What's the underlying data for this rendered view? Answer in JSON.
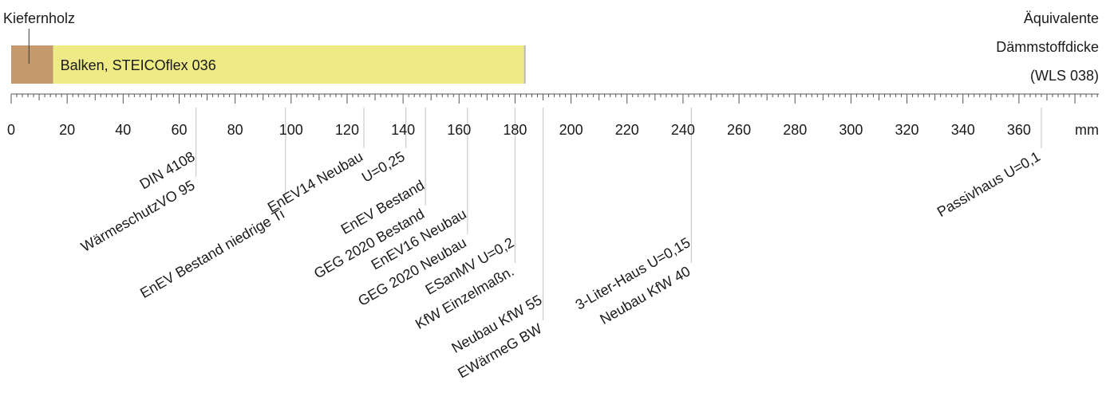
{
  "unit_label": "mm",
  "equivalent_label": [
    "Äquivalente",
    "Dämmstoffdicke",
    "(WLS 038)"
  ],
  "bar": {
    "segments": [
      {
        "name": "Kiefernholz",
        "from": 0,
        "to": 15,
        "color": "#c49a6c",
        "label": "Kiefernholz",
        "label_position": "above"
      },
      {
        "name": "Balken, STEICOflex 036",
        "from": 15,
        "to": 183.5,
        "color": "#eeeb86",
        "label": "Balken, STEICOflex 036",
        "label_position": "inside"
      }
    ]
  },
  "axis": {
    "min": 0,
    "max": 390,
    "major_step": 20,
    "tick_labels": [
      "0",
      "20",
      "40",
      "60",
      "80",
      "100",
      "120",
      "140",
      "160",
      "180",
      "200",
      "220",
      "240",
      "260",
      "280",
      "300",
      "320",
      "340",
      "360"
    ],
    "grid_color": "#cccccc"
  },
  "markers": [
    {
      "label": "DIN 4108",
      "value": 66,
      "level": 1
    },
    {
      "label": "WärmeschutzVO 95",
      "value": 66,
      "level": 2
    },
    {
      "label": "EnEV Bestand niedrige Ti",
      "value": 98,
      "level": 3
    },
    {
      "label": "EnEV14 Neubau",
      "value": 126,
      "level": 1
    },
    {
      "label": "U=0,25",
      "value": 141,
      "level": 1
    },
    {
      "label": "EnEV Bestand",
      "value": 148,
      "level": 2
    },
    {
      "label": "GEG 2020 Bestand",
      "value": 148,
      "level": 3
    },
    {
      "label": "EnEV16 Neubau",
      "value": 163,
      "level": 3
    },
    {
      "label": "GEG 2020 Neubau",
      "value": 163,
      "level": 4
    },
    {
      "label": "ESanMV U=0,2",
      "value": 180,
      "level": 4
    },
    {
      "label": "KfW Einzelmaßn.",
      "value": 180,
      "level": 5
    },
    {
      "label": "Neubau KfW 55",
      "value": 190,
      "level": 6
    },
    {
      "label": "EWärmeG BW",
      "value": 190,
      "level": 7
    },
    {
      "label": "3-Liter-Haus U=0,15",
      "value": 243,
      "level": 4
    },
    {
      "label": "Neubau KfW 40",
      "value": 243,
      "level": 5
    },
    {
      "label": "Passivhaus U=0,1",
      "value": 368,
      "level": 1
    }
  ]
}
